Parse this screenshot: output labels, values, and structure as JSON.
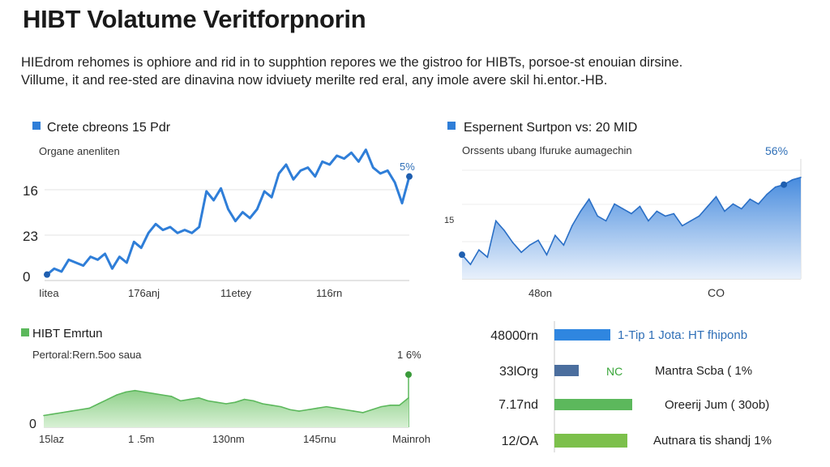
{
  "header": {
    "title": "HIBT Volatume Veritforpnorin",
    "intro_line1": "HIEdrom rehomes is ophiore and rid in to supphtion repores we the gistroo for HIBTs, porsoe-st enouian dirsine.",
    "intro_line2": "Villume, it and ree-sted are dinavina now idviuety merilte red eral, any imole avere skil hi.entor.-HB."
  },
  "colors": {
    "blue_line": "#2f7ed8",
    "blue_area_top": "#4a90e2",
    "blue_area_bottom": "#e4eefb",
    "green_line": "#5cb85c",
    "green_area": "#9ed99a",
    "bar_blue": "#2f86e0",
    "bar_slate": "#4b6e9e",
    "bar_green": "#5cb85c",
    "bar_lime": "#7cc04b",
    "nc_text": "#3aa63a"
  },
  "chart_data": [
    {
      "type": "line",
      "title": "Crete cbreons 15 Pdr",
      "subtitle": "Organe anenliten",
      "y_tick_labels": [
        "16",
        "23",
        "0"
      ],
      "x_tick_labels": [
        "Iitea",
        "176anj",
        "11etey",
        "116rn"
      ],
      "end_label": "5%",
      "x": [
        0,
        1,
        2,
        3,
        4,
        5,
        6,
        7,
        8,
        9,
        10,
        11,
        12,
        13,
        14,
        15,
        16,
        17,
        18,
        19,
        20,
        21,
        22,
        23,
        24,
        25,
        26,
        27,
        28,
        29,
        30,
        31,
        32,
        33,
        34,
        35,
        36,
        37,
        38,
        39,
        40,
        41,
        42,
        43,
        44,
        45,
        46,
        47,
        48,
        49,
        50
      ],
      "values": [
        2,
        4,
        3,
        7,
        6,
        5,
        8,
        7,
        9,
        4,
        8,
        6,
        13,
        11,
        16,
        19,
        17,
        18,
        16,
        17,
        16,
        18,
        30,
        27,
        31,
        24,
        20,
        23,
        21,
        24,
        30,
        28,
        36,
        39,
        34,
        37,
        38,
        35,
        40,
        39,
        42,
        41,
        43,
        40,
        44,
        38,
        36,
        37,
        33,
        26,
        35
      ],
      "ylim": [
        0,
        48
      ]
    },
    {
      "type": "area",
      "title": "Espernent Surtpon vs: 20 MID",
      "subtitle": "Orssents ubang Ifuruke aumagechin",
      "left_label": "15",
      "end_label": "56%",
      "x_tick_labels": [
        "48on",
        "CO"
      ],
      "x": [
        0,
        1,
        2,
        3,
        4,
        5,
        6,
        7,
        8,
        9,
        10,
        11,
        12,
        13,
        14,
        15,
        16,
        17,
        18,
        19,
        20,
        21,
        22,
        23,
        24,
        25,
        26,
        27,
        28,
        29,
        30,
        31,
        32,
        33,
        34,
        35,
        36,
        37,
        38,
        39,
        40
      ],
      "values": [
        10,
        6,
        12,
        9,
        24,
        20,
        15,
        11,
        14,
        16,
        10,
        18,
        14,
        22,
        28,
        33,
        26,
        24,
        31,
        29,
        27,
        30,
        24,
        28,
        26,
        27,
        22,
        24,
        26,
        30,
        34,
        28,
        31,
        29,
        33,
        31,
        35,
        38,
        39,
        41,
        42
      ],
      "ylim": [
        0,
        55
      ]
    },
    {
      "type": "area",
      "title": "HIBT Emrtun",
      "subtitle": "Pertoral:Rern.5oo saua",
      "end_label": "1 6%",
      "y_tick_labels": [
        "0"
      ],
      "x_tick_labels": [
        "15laz",
        "1 .5m",
        "130nm",
        "145rnu",
        "Mainroh"
      ],
      "x": [
        0,
        1,
        2,
        3,
        4,
        5,
        6,
        7,
        8,
        9,
        10,
        11,
        12,
        13,
        14,
        15,
        16,
        17,
        18,
        19,
        20,
        21,
        22,
        23,
        24,
        25,
        26,
        27,
        28,
        29,
        30,
        31,
        32,
        33,
        34,
        35,
        36,
        37,
        38,
        39,
        40
      ],
      "values": [
        8,
        9,
        10,
        11,
        12,
        13,
        16,
        19,
        22,
        24,
        25,
        24,
        23,
        22,
        21,
        18,
        19,
        20,
        18,
        17,
        16,
        17,
        19,
        18,
        16,
        15,
        14,
        12,
        11,
        12,
        13,
        14,
        13,
        12,
        11,
        10,
        12,
        14,
        15,
        15,
        20
      ],
      "ylim": [
        0,
        48
      ]
    },
    {
      "type": "bar",
      "categories": [
        "48000rn",
        "33lOrg",
        "7.17nd",
        "12/OA"
      ],
      "values": [
        69,
        30,
        96,
        90
      ],
      "bar_colors": [
        "#2f86e0",
        "#4b6e9e",
        "#5cb85c",
        "#7cc04b"
      ],
      "right_labels": [
        "1-Tip 1 Jota: HT fhiponb",
        "Mantra Scba ( 1%",
        "Oreerij Jum ( 30ob)",
        "Autnara tis shandj 1%"
      ],
      "inline_label": "NC",
      "xlim": [
        0,
        100
      ]
    }
  ]
}
